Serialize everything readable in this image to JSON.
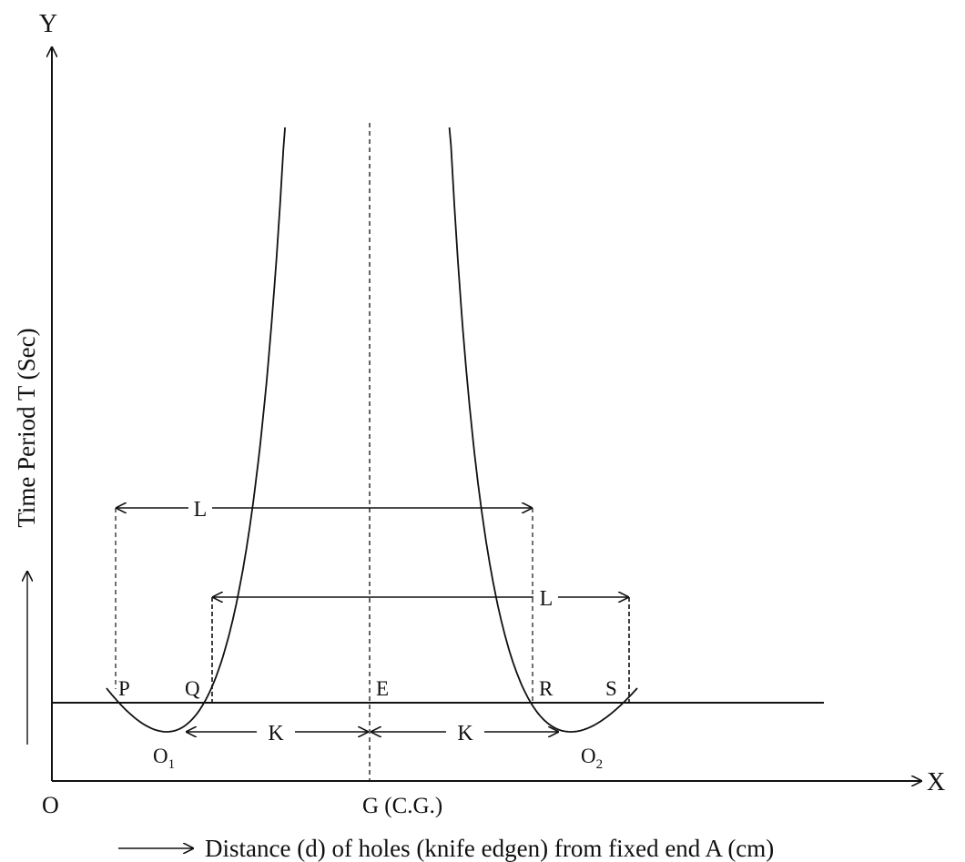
{
  "axes": {
    "y_axis_letter": "Y",
    "x_axis_letter": "X",
    "origin_label": "O",
    "y_axis_title": "Time Period T (Sec)",
    "x_axis_title": "Distance (d) of holes (knife edgen) from fixed end A (cm)",
    "cg_label": "G (C.G.)"
  },
  "points": {
    "P": "P",
    "Q": "Q",
    "E": "E",
    "R": "R",
    "S": "S",
    "O1": "O",
    "O1_sub": "1",
    "O2": "O",
    "O2_sub": "2"
  },
  "dimensions": {
    "L_upper": "L",
    "L_lower": "L",
    "K_left": "K",
    "K_right": "K"
  },
  "colors": {
    "ink": "#111111",
    "background": "#ffffff"
  }
}
